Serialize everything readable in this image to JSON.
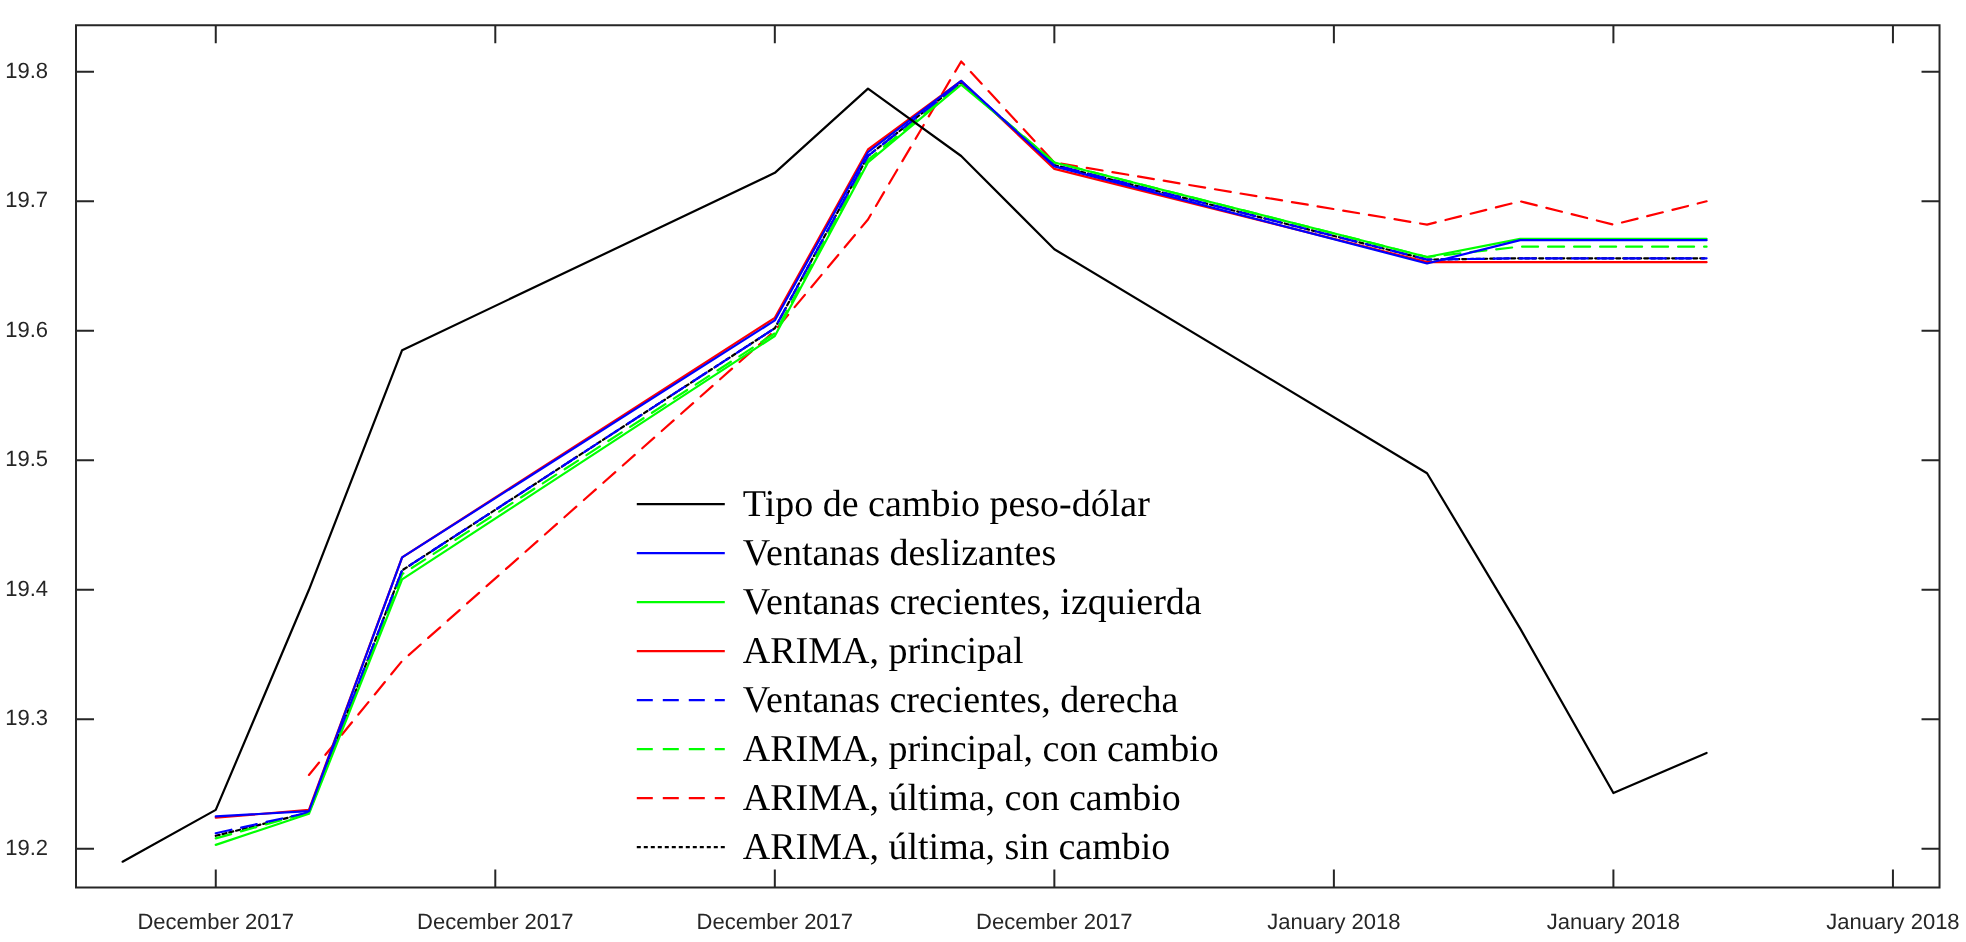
{
  "chart_data": {
    "type": "line",
    "categories": [
      null,
      "December 2017",
      null,
      null,
      "December 2017",
      null,
      null,
      "December 2017",
      null,
      null,
      "December 2017",
      null,
      null,
      "January 2018",
      null,
      null,
      "January 2018",
      null,
      null,
      "January 2018"
    ],
    "ylim": [
      19.17,
      19.836
    ],
    "yticks": [
      19.2,
      19.3,
      19.4,
      19.5,
      19.6,
      19.7,
      19.8
    ],
    "grid": false,
    "legend": "bottom",
    "marker": "none",
    "series": [
      {
        "name": "Tipo de cambio peso-dólar",
        "color": "#000000",
        "line_style": "solid",
        "values": [
          19.19,
          19.23,
          19.4,
          19.585,
          null,
          null,
          null,
          19.722,
          19.787,
          19.735,
          19.663,
          null,
          null,
          null,
          19.49,
          19.37,
          19.243,
          19.274,
          null,
          null
        ]
      },
      {
        "name": "Ventanas deslizantes",
        "color": "#0000ff",
        "line_style": "solid",
        "values": [
          null,
          19.225,
          19.229,
          19.425,
          null,
          null,
          null,
          19.608,
          19.738,
          19.793,
          19.727,
          null,
          null,
          null,
          19.652,
          19.67,
          19.67,
          19.67,
          null,
          null
        ]
      },
      {
        "name": "Ventanas crecientes, izquierda",
        "color": "#00ff00",
        "line_style": "solid",
        "values": [
          null,
          19.203,
          19.227,
          19.408,
          null,
          null,
          null,
          19.596,
          19.73,
          19.79,
          19.73,
          null,
          null,
          null,
          19.657,
          19.671,
          19.671,
          19.671,
          null,
          null
        ]
      },
      {
        "name": "ARIMA, principal",
        "color": "#ff0000",
        "line_style": "solid",
        "values": [
          null,
          19.224,
          19.23,
          19.425,
          null,
          null,
          null,
          19.61,
          19.74,
          19.793,
          19.725,
          null,
          null,
          null,
          19.653,
          19.653,
          19.653,
          19.653,
          null,
          null
        ]
      },
      {
        "name": "Ventanas crecientes, derecha",
        "color": "#0000ff",
        "line_style": "dashed",
        "values": [
          null,
          19.212,
          19.228,
          19.415,
          null,
          null,
          null,
          19.602,
          19.735,
          19.792,
          19.728,
          null,
          null,
          null,
          19.655,
          19.656,
          19.656,
          19.656,
          null,
          null
        ]
      },
      {
        "name": "ARIMA, principal, con cambio",
        "color": "#00ff00",
        "line_style": "dashed",
        "values": [
          null,
          19.208,
          19.228,
          19.412,
          null,
          null,
          null,
          19.598,
          19.732,
          19.791,
          19.73,
          null,
          null,
          null,
          19.657,
          19.665,
          19.665,
          19.665,
          null,
          null
        ]
      },
      {
        "name": "ARIMA, última, con cambio",
        "color": "#ff0000",
        "line_style": "dashed",
        "values": [
          null,
          null,
          19.257,
          19.345,
          null,
          null,
          null,
          19.6,
          19.686,
          19.808,
          19.73,
          null,
          null,
          null,
          19.682,
          19.7,
          19.682,
          19.7,
          null,
          null
        ]
      },
      {
        "name": "ARIMA, última, sin cambio",
        "color": "#000000",
        "line_style": "dotted",
        "values": [
          null,
          19.21,
          19.228,
          19.415,
          null,
          null,
          null,
          19.602,
          19.735,
          19.792,
          19.728,
          null,
          null,
          null,
          19.655,
          19.656,
          19.656,
          19.656,
          null,
          null
        ]
      }
    ]
  }
}
